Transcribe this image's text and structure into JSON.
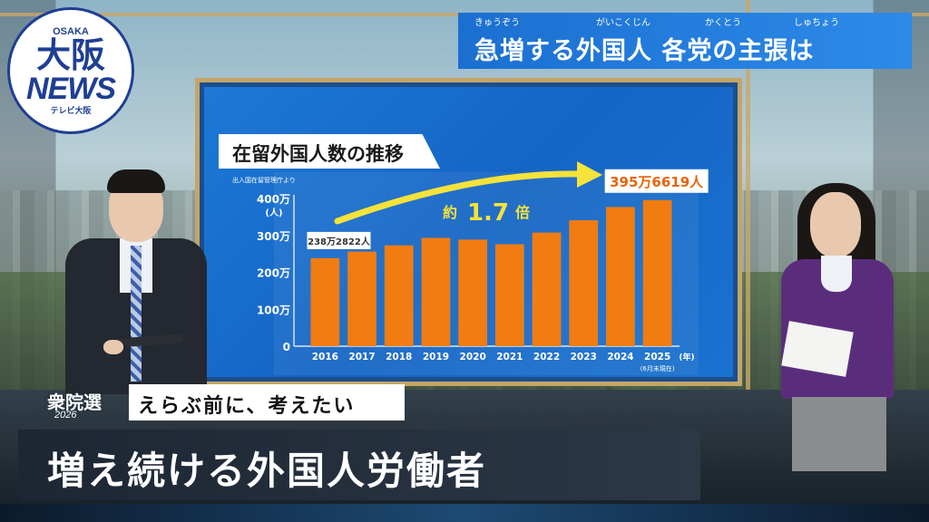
{
  "logo": {
    "top": "OSAKA",
    "kanji": "大阪",
    "news": "NEWS",
    "sub": "テレビ大阪"
  },
  "banner": {
    "title": "急増する外国人 各党の主張は",
    "ruby": [
      "きゅうぞう",
      "がいこくじん",
      "かくとう",
      "しゅちょう"
    ]
  },
  "chart_data": {
    "type": "bar",
    "title": "在留外国人数の推移",
    "source": "出入国在留管理庁より",
    "categories": [
      "2016",
      "2017",
      "2018",
      "2019",
      "2020",
      "2021",
      "2022",
      "2023",
      "2024",
      "2025"
    ],
    "values": [
      238.2822,
      256.1,
      273.1,
      293.3,
      288.7,
      276.1,
      307.6,
      341.1,
      376.9,
      395.6619
    ],
    "xlabel": "(年)",
    "xlabel_note": "(6月末現在)",
    "ylabel": "(人)",
    "ylim": [
      0,
      400
    ],
    "yticks": [
      0,
      100,
      200,
      300,
      400
    ],
    "ytick_labels": [
      "0",
      "100万",
      "200万",
      "300万",
      "400万"
    ],
    "bar_color": "#f07c12",
    "annotations": {
      "first": "238万2822人",
      "last": "395万6619人",
      "growth_prefix": "約",
      "growth_value": "1.7",
      "growth_suffix": "倍"
    },
    "grid": false
  },
  "captions": {
    "election": "衆院選",
    "year": "2026",
    "sub": "えらぶ前に、考えたい",
    "headline": "増え続ける外国人労働者"
  },
  "colors": {
    "banner": "#1b6fd0",
    "board": "#1a72cf",
    "accent_yellow": "#f5e23a",
    "frame": "#c4a566"
  }
}
